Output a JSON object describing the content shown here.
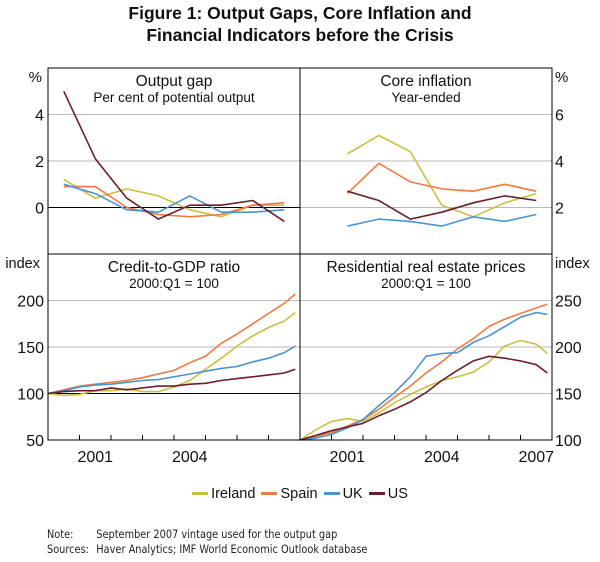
{
  "figure": {
    "title_line1": "Figure 1: Output Gaps, Core Inflation and",
    "title_line2": "Financial Indicators before the Crisis",
    "note_label": "Note:",
    "note_text": "September 2007 vintage used for the output gap",
    "sources_label": "Sources:",
    "sources_text": "Haver Analytics; IMF World Economic Outlook database"
  },
  "legend": [
    {
      "name": "Ireland",
      "color": "#c9c13f"
    },
    {
      "name": "Spain",
      "color": "#f37a3f"
    },
    {
      "name": "UK",
      "color": "#4b93d2"
    },
    {
      "name": "US",
      "color": "#6c1f2b"
    }
  ],
  "chart_data": [
    {
      "id": "output_gap",
      "type": "line",
      "title": "Output gap",
      "subtitle": "Per cent of potential output",
      "ylabel": "%",
      "yaxis_side": "left",
      "ylim": [
        -2,
        6
      ],
      "yticks": [
        0,
        2,
        4
      ],
      "xlim": [
        2000,
        2008
      ],
      "xtick_labels": [],
      "grid": true,
      "zero_line": 0,
      "x": [
        2000.5,
        2001.5,
        2002.5,
        2003.5,
        2004.5,
        2005.5,
        2006.5,
        2007.5
      ],
      "series": [
        {
          "name": "Ireland",
          "values": [
            1.2,
            0.4,
            0.8,
            0.5,
            -0.1,
            -0.4,
            0.1,
            0.1
          ]
        },
        {
          "name": "Spain",
          "values": [
            0.9,
            0.9,
            0.0,
            -0.3,
            -0.4,
            -0.3,
            0.1,
            0.2
          ]
        },
        {
          "name": "UK",
          "values": [
            1.0,
            0.6,
            -0.1,
            -0.2,
            0.5,
            -0.2,
            -0.2,
            -0.1
          ]
        },
        {
          "name": "US",
          "values": [
            5.0,
            2.1,
            0.4,
            -0.5,
            0.1,
            0.1,
            0.3,
            -0.6
          ]
        }
      ]
    },
    {
      "id": "core_inflation",
      "type": "line",
      "title": "Core inflation",
      "subtitle": "Year-ended",
      "ylabel": "%",
      "yaxis_side": "right",
      "ylim": [
        0,
        8
      ],
      "yticks": [
        2,
        4,
        6
      ],
      "xlim": [
        2000,
        2008
      ],
      "xtick_labels": [],
      "grid": true,
      "x": [
        2001.5,
        2002.5,
        2003.5,
        2004.5,
        2005.5,
        2006.5,
        2007.5
      ],
      "series": [
        {
          "name": "Ireland",
          "values": [
            4.3,
            5.1,
            4.4,
            2.1,
            1.6,
            2.2,
            2.6
          ]
        },
        {
          "name": "Spain",
          "values": [
            2.6,
            3.9,
            3.1,
            2.8,
            2.7,
            3.0,
            2.7
          ]
        },
        {
          "name": "UK",
          "values": [
            1.2,
            1.5,
            1.4,
            1.2,
            1.6,
            1.4,
            1.7
          ]
        },
        {
          "name": "US",
          "values": [
            2.7,
            2.3,
            1.5,
            1.8,
            2.2,
            2.5,
            2.3
          ]
        }
      ]
    },
    {
      "id": "credit_to_gdp",
      "type": "line",
      "title": "Credit-to-GDP ratio",
      "subtitle": "2000:Q1 = 100",
      "ylabel": "index",
      "yaxis_side": "left",
      "ylim": [
        50,
        250
      ],
      "yticks": [
        50,
        100,
        150,
        200
      ],
      "xlim": [
        2000,
        2008
      ],
      "xtick_labels": [
        "2001",
        "2004"
      ],
      "grid": true,
      "zero_line": 100,
      "x": [
        2000.0,
        2000.5,
        2001.0,
        2001.5,
        2002.0,
        2002.5,
        2003.0,
        2003.5,
        2004.0,
        2004.5,
        2005.0,
        2005.5,
        2006.0,
        2006.5,
        2007.0,
        2007.5,
        2007.85
      ],
      "series": [
        {
          "name": "Ireland",
          "values": [
            100,
            98,
            99,
            103,
            103,
            105,
            102,
            102,
            107,
            114,
            126,
            138,
            151,
            162,
            171,
            178,
            187
          ]
        },
        {
          "name": "Spain",
          "values": [
            100,
            104,
            108,
            110,
            112,
            114,
            117,
            121,
            125,
            133,
            140,
            154,
            164,
            175,
            186,
            197,
            207
          ]
        },
        {
          "name": "UK",
          "values": [
            100,
            103,
            107,
            109,
            110,
            112,
            114,
            115,
            118,
            121,
            124,
            127,
            129,
            134,
            138,
            144,
            151
          ]
        },
        {
          "name": "US",
          "values": [
            100,
            102,
            103,
            103,
            106,
            104,
            106,
            108,
            108,
            110,
            111,
            114,
            116,
            118,
            120,
            122,
            126
          ]
        }
      ]
    },
    {
      "id": "residential_real_estate",
      "type": "line",
      "title": "Residential real estate prices",
      "subtitle": "2000:Q1 = 100",
      "ylabel": "index",
      "yaxis_side": "right",
      "ylim": [
        100,
        300
      ],
      "yticks": [
        100,
        150,
        200,
        250
      ],
      "xlim": [
        2000,
        2008
      ],
      "xtick_labels": [
        "2001",
        "2004",
        "2007"
      ],
      "grid": true,
      "x": [
        2000.0,
        2000.5,
        2001.0,
        2001.5,
        2002.0,
        2002.5,
        2003.0,
        2003.5,
        2004.0,
        2004.5,
        2005.0,
        2005.5,
        2006.0,
        2006.5,
        2007.0,
        2007.5,
        2007.85
      ],
      "series": [
        {
          "name": "Ireland",
          "values": [
            100,
            111,
            120,
            123,
            120,
            129,
            140,
            149,
            157,
            164,
            168,
            173,
            184,
            201,
            207,
            203,
            193
          ]
        },
        {
          "name": "Spain",
          "values": [
            100,
            104,
            108,
            115,
            122,
            133,
            146,
            158,
            172,
            184,
            198,
            209,
            222,
            230,
            236,
            242,
            246
          ]
        },
        {
          "name": "UK",
          "values": [
            100,
            102,
            106,
            113,
            122,
            137,
            151,
            168,
            190,
            193,
            194,
            205,
            212,
            222,
            232,
            237,
            235
          ]
        },
        {
          "name": "US",
          "values": [
            100,
            105,
            110,
            114,
            118,
            126,
            133,
            141,
            151,
            164,
            175,
            185,
            190,
            188,
            185,
            181,
            172
          ]
        }
      ]
    }
  ]
}
